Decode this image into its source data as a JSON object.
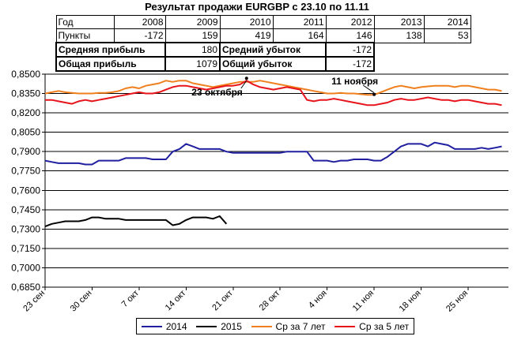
{
  "title": "Результат продажи EURGBP с 23.10 по 11.11",
  "stats_table": {
    "header": [
      "Год",
      "2008",
      "2009",
      "2010",
      "2011",
      "2012",
      "2013",
      "2014"
    ],
    "points_label": "Пункты",
    "points": [
      "-172",
      "159",
      "419",
      "164",
      "146",
      "138",
      "53"
    ],
    "avg_profit_label": "Средняя прибыль",
    "avg_profit": "180",
    "avg_loss_label": "Средний убыток",
    "avg_loss": "-172",
    "total_profit_label": "Общая прибыль",
    "total_profit": "1079",
    "total_loss_label": "Общий убыток",
    "total_loss": "-172"
  },
  "chart_data": {
    "type": "line",
    "ylim": [
      0.685,
      0.85
    ],
    "yticks": [
      "0,8500",
      "0,8350",
      "0,8200",
      "0,8050",
      "0,7900",
      "0,7750",
      "0,7600",
      "0,7450",
      "0,7300",
      "0,7150",
      "0,7000",
      "0,6850"
    ],
    "ytick_values": [
      0.85,
      0.835,
      0.82,
      0.805,
      0.79,
      0.775,
      0.76,
      0.745,
      0.73,
      0.715,
      0.7,
      0.685
    ],
    "xlim": [
      0,
      69
    ],
    "xticks": [
      "23 сен",
      "30 сен",
      "7 окт",
      "14 окт",
      "21 окт",
      "28 окт",
      "4 ноя",
      "11 ноя",
      "18 ноя",
      "25 ноя"
    ],
    "xtick_positions": [
      0,
      7,
      14,
      21,
      28,
      35,
      42,
      49,
      56,
      63
    ],
    "grid": true,
    "legend_position": "bottom",
    "annotations": [
      {
        "text": "23 октября",
        "x": 30,
        "y": 0.8468
      },
      {
        "text": "11 ноября",
        "x": 49,
        "y": 0.8343
      }
    ],
    "series": [
      {
        "name": "2014",
        "color": "#1f1fa0",
        "x": [
          0,
          1,
          2,
          3,
          4,
          5,
          6,
          7,
          8,
          9,
          10,
          11,
          12,
          13,
          14,
          15,
          16,
          17,
          18,
          19,
          20,
          21,
          22,
          23,
          24,
          25,
          26,
          27,
          28,
          29,
          30,
          31,
          32,
          33,
          34,
          35,
          36,
          37,
          38,
          39,
          40,
          41,
          42,
          43,
          44,
          45,
          46,
          47,
          48,
          49,
          50,
          51,
          52,
          53,
          54,
          55,
          56,
          57,
          58,
          59,
          60,
          61,
          62,
          63,
          64,
          65,
          66,
          67,
          68
        ],
        "y": [
          0.783,
          0.782,
          0.781,
          0.781,
          0.781,
          0.781,
          0.78,
          0.78,
          0.783,
          0.783,
          0.783,
          0.783,
          0.785,
          0.785,
          0.785,
          0.785,
          0.784,
          0.784,
          0.784,
          0.79,
          0.792,
          0.796,
          0.794,
          0.792,
          0.792,
          0.792,
          0.792,
          0.79,
          0.789,
          0.789,
          0.789,
          0.789,
          0.789,
          0.789,
          0.789,
          0.789,
          0.79,
          0.79,
          0.79,
          0.79,
          0.783,
          0.783,
          0.783,
          0.782,
          0.783,
          0.783,
          0.784,
          0.784,
          0.784,
          0.783,
          0.783,
          0.786,
          0.79,
          0.794,
          0.796,
          0.796,
          0.796,
          0.794,
          0.797,
          0.796,
          0.795,
          0.792,
          0.792,
          0.792,
          0.792,
          0.793,
          0.792,
          0.793,
          0.794
        ]
      },
      {
        "name": "2015",
        "color": "#000000",
        "x": [
          0,
          1,
          2,
          3,
          4,
          5,
          6,
          7,
          8,
          9,
          10,
          11,
          12,
          13,
          14,
          15,
          16,
          17,
          18,
          19,
          20,
          21,
          22,
          23,
          24,
          25,
          26,
          27
        ],
        "y": [
          0.732,
          0.734,
          0.735,
          0.736,
          0.736,
          0.736,
          0.737,
          0.739,
          0.739,
          0.738,
          0.738,
          0.738,
          0.737,
          0.737,
          0.737,
          0.737,
          0.737,
          0.737,
          0.737,
          0.733,
          0.734,
          0.737,
          0.739,
          0.739,
          0.739,
          0.738,
          0.74,
          0.734
        ]
      },
      {
        "name": "Ср за 7 лет",
        "color": "#f07f1e",
        "x": [
          0,
          1,
          2,
          3,
          4,
          5,
          6,
          7,
          8,
          9,
          10,
          11,
          12,
          13,
          14,
          15,
          16,
          17,
          18,
          19,
          20,
          21,
          22,
          23,
          24,
          25,
          26,
          27,
          28,
          29,
          30,
          31,
          32,
          33,
          34,
          35,
          36,
          37,
          38,
          39,
          40,
          41,
          42,
          43,
          44,
          45,
          46,
          47,
          48,
          49,
          50,
          51,
          52,
          53,
          54,
          55,
          56,
          57,
          58,
          59,
          60,
          61,
          62,
          63,
          64,
          65,
          66,
          67,
          68
        ],
        "y": [
          0.835,
          0.836,
          0.837,
          0.836,
          0.8355,
          0.835,
          0.835,
          0.835,
          0.8355,
          0.8355,
          0.836,
          0.837,
          0.839,
          0.84,
          0.839,
          0.841,
          0.842,
          0.843,
          0.845,
          0.844,
          0.845,
          0.845,
          0.843,
          0.842,
          0.841,
          0.84,
          0.841,
          0.842,
          0.843,
          0.844,
          0.844,
          0.844,
          0.845,
          0.844,
          0.843,
          0.842,
          0.841,
          0.84,
          0.839,
          0.838,
          0.837,
          0.836,
          0.835,
          0.835,
          0.8355,
          0.835,
          0.835,
          0.8345,
          0.834,
          0.834,
          0.836,
          0.838,
          0.84,
          0.841,
          0.84,
          0.839,
          0.84,
          0.8405,
          0.841,
          0.841,
          0.841,
          0.84,
          0.841,
          0.841,
          0.84,
          0.839,
          0.838,
          0.838,
          0.837
        ]
      },
      {
        "name": "Ср за 5 лет",
        "color": "#e8141b",
        "x": [
          0,
          1,
          2,
          3,
          4,
          5,
          6,
          7,
          8,
          9,
          10,
          11,
          12,
          13,
          14,
          15,
          16,
          17,
          18,
          19,
          20,
          21,
          22,
          23,
          24,
          25,
          26,
          27,
          28,
          29,
          30,
          31,
          32,
          33,
          34,
          35,
          36,
          37,
          38,
          39,
          40,
          41,
          42,
          43,
          44,
          45,
          46,
          47,
          48,
          49,
          50,
          51,
          52,
          53,
          54,
          55,
          56,
          57,
          58,
          59,
          60,
          61,
          62,
          63,
          64,
          65,
          66,
          67,
          68
        ],
        "y": [
          0.83,
          0.83,
          0.829,
          0.828,
          0.827,
          0.829,
          0.83,
          0.829,
          0.83,
          0.831,
          0.832,
          0.833,
          0.834,
          0.835,
          0.836,
          0.835,
          0.835,
          0.836,
          0.838,
          0.84,
          0.841,
          0.841,
          0.84,
          0.839,
          0.838,
          0.839,
          0.84,
          0.841,
          0.841,
          0.842,
          0.845,
          0.842,
          0.84,
          0.839,
          0.838,
          0.839,
          0.84,
          0.839,
          0.838,
          0.83,
          0.829,
          0.83,
          0.83,
          0.831,
          0.83,
          0.829,
          0.828,
          0.827,
          0.826,
          0.826,
          0.827,
          0.828,
          0.83,
          0.831,
          0.83,
          0.83,
          0.831,
          0.832,
          0.831,
          0.83,
          0.83,
          0.829,
          0.83,
          0.83,
          0.829,
          0.828,
          0.827,
          0.827,
          0.826
        ]
      }
    ]
  }
}
